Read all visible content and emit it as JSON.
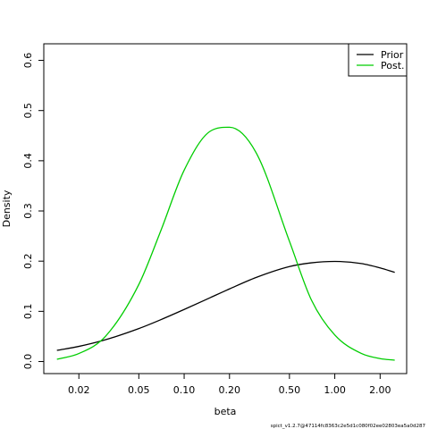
{
  "chart_data": {
    "type": "line",
    "xlabel": "beta",
    "ylabel": "Density",
    "x_scale": "log",
    "xlim": [
      0.0117,
      3.0
    ],
    "ylim": [
      -0.024,
      0.633
    ],
    "x_ticks": [
      {
        "value": 0.02,
        "label": "0.02"
      },
      {
        "value": 0.05,
        "label": "0.05"
      },
      {
        "value": 0.1,
        "label": "0.10"
      },
      {
        "value": 0.2,
        "label": "0.20"
      },
      {
        "value": 0.5,
        "label": "0.50"
      },
      {
        "value": 1.0,
        "label": "1.00"
      },
      {
        "value": 2.0,
        "label": "2.00"
      }
    ],
    "y_ticks": [
      {
        "value": 0.0,
        "label": "0.0"
      },
      {
        "value": 0.1,
        "label": "0.1"
      },
      {
        "value": 0.2,
        "label": "0.2"
      },
      {
        "value": 0.3,
        "label": "0.3"
      },
      {
        "value": 0.4,
        "label": "0.4"
      },
      {
        "value": 0.5,
        "label": "0.5"
      },
      {
        "value": 0.6,
        "label": "0.6"
      }
    ],
    "grid": false,
    "legend_position": "top-right",
    "series": [
      {
        "name": "Prior",
        "color": "#000000",
        "x": [
          0.0143,
          0.02,
          0.03,
          0.05,
          0.07,
          0.1,
          0.15,
          0.2,
          0.3,
          0.5,
          0.7,
          1.0,
          1.5,
          2.0,
          2.5
        ],
        "y": [
          0.0223,
          0.0302,
          0.0434,
          0.0657,
          0.0834,
          0.1037,
          0.1277,
          0.1447,
          0.1674,
          0.1892,
          0.1967,
          0.1995,
          0.1952,
          0.1865,
          0.1776
        ]
      },
      {
        "name": "Post.",
        "color": "#00cd00",
        "x": [
          0.0143,
          0.02,
          0.03,
          0.05,
          0.07,
          0.1,
          0.15,
          0.2,
          0.3,
          0.5,
          0.7,
          1.0,
          1.5,
          2.0,
          2.5
        ],
        "y": [
          0.0045,
          0.0159,
          0.0501,
          0.1535,
          0.2607,
          0.3812,
          0.4594,
          0.4667,
          0.4164,
          0.2396,
          0.1224,
          0.0528,
          0.0162,
          0.0059,
          0.0027
        ]
      }
    ]
  },
  "footnote": "spict_v1.2.7@47114fc8363c2e5d1c080f02ee02803ea5a0d287"
}
